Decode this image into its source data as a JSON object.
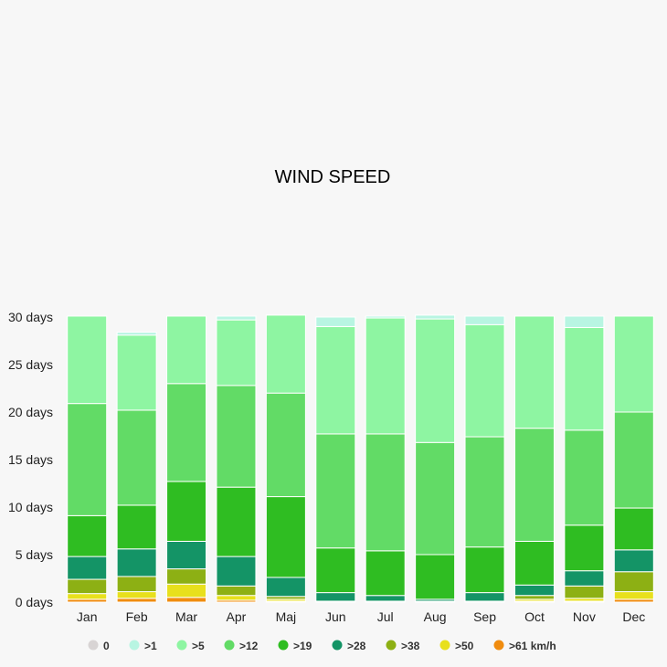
{
  "chart_data": {
    "type": "bar",
    "stacked": true,
    "title": "WIND SPEED",
    "xlabel": "",
    "ylabel": "",
    "ylim": [
      0,
      30
    ],
    "y_ticks": [
      0,
      5,
      10,
      15,
      20,
      25,
      30
    ],
    "y_tick_suffix": " days",
    "grid": false,
    "legend_position": "bottom",
    "categories": [
      "Jan",
      "Feb",
      "Mar",
      "Apr",
      "Maj",
      "Jun",
      "Jul",
      "Aug",
      "Sep",
      "Oct",
      "Nov",
      "Dec"
    ],
    "series": [
      {
        "name": "0",
        "color": "#d8d4d4",
        "values": [
          0,
          0,
          0,
          0,
          0,
          0,
          0,
          0,
          0,
          0,
          0,
          0
        ]
      },
      {
        "name": ">61 km/h",
        "color": "#f08c0f",
        "values": [
          0.3,
          0.4,
          0.5,
          0.2,
          0.1,
          0,
          0,
          0,
          0,
          0.1,
          0.1,
          0.3
        ]
      },
      {
        "name": ">50",
        "color": "#e8e01c",
        "values": [
          0.6,
          0.7,
          1.4,
          0.5,
          0.2,
          0,
          0,
          0,
          0,
          0.2,
          0.3,
          0.8
        ]
      },
      {
        "name": ">38",
        "color": "#8db014",
        "values": [
          1.5,
          1.6,
          1.6,
          1.0,
          0.3,
          0.1,
          0.1,
          0.1,
          0.1,
          0.4,
          1.3,
          2.1
        ]
      },
      {
        "name": ">28",
        "color": "#149466",
        "values": [
          2.4,
          2.9,
          2.9,
          3.1,
          2.0,
          0.9,
          0.6,
          0.2,
          0.9,
          1.1,
          1.6,
          2.3
        ]
      },
      {
        "name": ">19",
        "color": "#2fbd22",
        "values": [
          4.3,
          4.6,
          6.3,
          7.3,
          8.5,
          4.7,
          4.7,
          4.7,
          4.8,
          4.6,
          4.8,
          4.4
        ]
      },
      {
        "name": ">12",
        "color": "#62db66",
        "values": [
          11.8,
          10.0,
          10.3,
          10.7,
          10.9,
          12.0,
          12.3,
          11.8,
          11.6,
          11.9,
          10.0,
          10.1
        ]
      },
      {
        "name": ">5",
        "color": "#8ef5a2",
        "values": [
          9.2,
          7.9,
          7.1,
          6.9,
          8.2,
          11.3,
          12.2,
          13.0,
          11.8,
          11.8,
          10.8,
          10.1
        ]
      },
      {
        "name": ">1",
        "color": "#b8f5e2",
        "values": [
          0,
          0.3,
          0,
          0.4,
          0,
          1.0,
          0.2,
          0.4,
          0.9,
          0,
          1.2,
          0
        ]
      }
    ],
    "legend_order": [
      "0",
      ">1",
      ">5",
      ">12",
      ">19",
      ">28",
      ">38",
      ">50",
      ">61 km/h"
    ]
  }
}
